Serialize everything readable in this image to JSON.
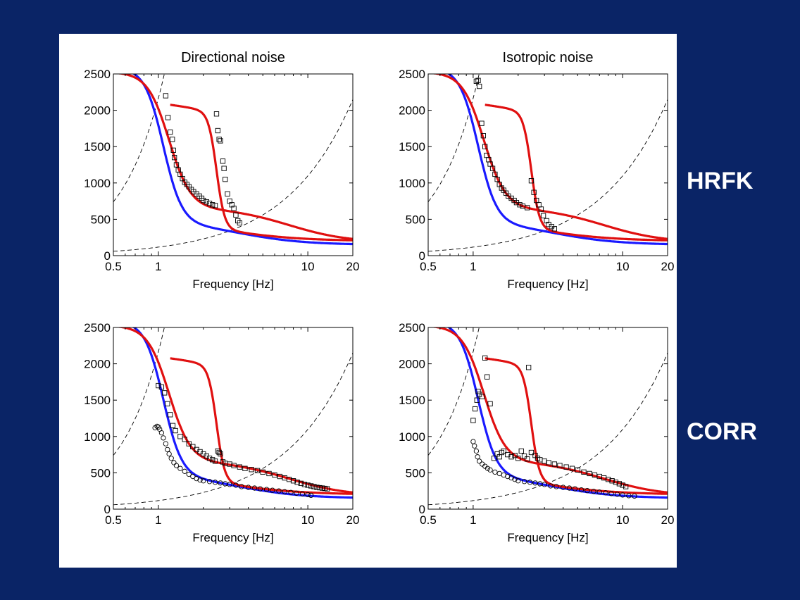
{
  "row_labels": {
    "top": "HRFK",
    "bottom": "CORR"
  },
  "colors": {
    "background": "#0a2466",
    "red_curve": "#e01010",
    "blue_curve": "#1a1aff",
    "markers": "#000000",
    "dashed": "#000000"
  },
  "axes_common": {
    "xlabel": "Frequency [Hz]",
    "xscale": "log",
    "xlim": [
      0.5,
      20
    ],
    "ylim": [
      0,
      2500
    ],
    "xticks": [
      0.5,
      1,
      10,
      20
    ],
    "xtick_labels": [
      "0.5",
      "1",
      "10",
      "20"
    ],
    "yticks": [
      0,
      500,
      1000,
      1500,
      2000,
      2500
    ],
    "ytick_labels": [
      "0",
      "500",
      "1000",
      "1500",
      "2000",
      "2500"
    ]
  },
  "chart_data": [
    {
      "type": "scatter",
      "title": "Directional noise",
      "xlabel": "Frequency [Hz]",
      "xlim": [
        0.5,
        20
      ],
      "ylim": [
        0,
        2500
      ],
      "series": [
        {
          "marker": "square",
          "points": [
            [
              1.12,
              2200
            ],
            [
              1.16,
              1900
            ],
            [
              1.2,
              1700
            ],
            [
              1.24,
              1600
            ],
            [
              1.26,
              1450
            ],
            [
              1.28,
              1350
            ],
            [
              1.32,
              1250
            ],
            [
              1.36,
              1180
            ],
            [
              1.4,
              1120
            ],
            [
              1.45,
              1060
            ],
            [
              1.5,
              1010
            ],
            [
              1.55,
              980
            ],
            [
              1.6,
              950
            ],
            [
              1.66,
              910
            ],
            [
              1.72,
              880
            ],
            [
              1.8,
              850
            ],
            [
              1.88,
              820
            ],
            [
              1.95,
              790
            ],
            [
              2.0,
              760
            ],
            [
              2.1,
              740
            ],
            [
              2.2,
              720
            ],
            [
              2.3,
              700
            ],
            [
              2.4,
              690
            ],
            [
              2.45,
              1950
            ],
            [
              2.5,
              1720
            ],
            [
              2.55,
              1600
            ],
            [
              2.6,
              1580
            ],
            [
              2.7,
              1300
            ],
            [
              2.75,
              1200
            ],
            [
              2.8,
              1050
            ],
            [
              2.9,
              850
            ],
            [
              3.0,
              750
            ],
            [
              3.1,
              700
            ],
            [
              3.2,
              650
            ],
            [
              3.3,
              560
            ],
            [
              3.4,
              480
            ],
            [
              3.5,
              450
            ]
          ]
        }
      ]
    },
    {
      "type": "scatter",
      "title": "Isotropic noise",
      "xlabel": "Frequency [Hz]",
      "xlim": [
        0.5,
        20
      ],
      "ylim": [
        0,
        2500
      ],
      "series": [
        {
          "marker": "square",
          "points": [
            [
              1.05,
              2400
            ],
            [
              1.08,
              2410
            ],
            [
              1.1,
              2330
            ],
            [
              1.14,
              1820
            ],
            [
              1.17,
              1650
            ],
            [
              1.2,
              1500
            ],
            [
              1.23,
              1380
            ],
            [
              1.27,
              1320
            ],
            [
              1.3,
              1260
            ],
            [
              1.35,
              1200
            ],
            [
              1.4,
              1120
            ],
            [
              1.45,
              1050
            ],
            [
              1.5,
              980
            ],
            [
              1.55,
              930
            ],
            [
              1.6,
              900
            ],
            [
              1.66,
              860
            ],
            [
              1.72,
              820
            ],
            [
              1.8,
              790
            ],
            [
              1.88,
              760
            ],
            [
              1.95,
              730
            ],
            [
              2.05,
              700
            ],
            [
              2.15,
              680
            ],
            [
              2.3,
              660
            ],
            [
              2.45,
              1030
            ],
            [
              2.55,
              870
            ],
            [
              2.65,
              760
            ],
            [
              2.75,
              700
            ],
            [
              2.85,
              640
            ],
            [
              2.95,
              550
            ],
            [
              3.1,
              480
            ],
            [
              3.2,
              430
            ],
            [
              3.35,
              400
            ],
            [
              3.5,
              370
            ]
          ]
        }
      ]
    },
    {
      "type": "scatter",
      "xlabel": "Frequency [Hz]",
      "xlim": [
        0.5,
        20
      ],
      "ylim": [
        0,
        2500
      ],
      "series": [
        {
          "marker": "square",
          "points": [
            [
              1.0,
              1700
            ],
            [
              1.05,
              1680
            ],
            [
              1.1,
              1600
            ],
            [
              1.15,
              1450
            ],
            [
              1.2,
              1300
            ],
            [
              1.25,
              1150
            ],
            [
              1.3,
              1080
            ],
            [
              1.4,
              1000
            ],
            [
              1.5,
              960
            ],
            [
              1.6,
              900
            ],
            [
              1.7,
              860
            ],
            [
              1.8,
              820
            ],
            [
              1.9,
              790
            ],
            [
              2.0,
              760
            ],
            [
              2.1,
              730
            ],
            [
              2.2,
              700
            ],
            [
              2.3,
              680
            ],
            [
              2.4,
              660
            ],
            [
              2.5,
              800
            ],
            [
              2.55,
              780
            ],
            [
              2.6,
              760
            ],
            [
              2.7,
              650
            ],
            [
              2.8,
              630
            ],
            [
              3.0,
              620
            ],
            [
              3.2,
              600
            ],
            [
              3.5,
              580
            ],
            [
              3.8,
              560
            ],
            [
              4.2,
              545
            ],
            [
              4.6,
              530
            ],
            [
              5.0,
              510
            ],
            [
              5.5,
              490
            ],
            [
              6.0,
              470
            ],
            [
              6.5,
              450
            ],
            [
              7.0,
              430
            ],
            [
              7.5,
              410
            ],
            [
              8.0,
              390
            ],
            [
              8.5,
              370
            ],
            [
              9.0,
              355
            ],
            [
              9.5,
              340
            ],
            [
              10.0,
              330
            ],
            [
              10.5,
              320
            ],
            [
              11.0,
              310
            ],
            [
              11.5,
              300
            ],
            [
              12.0,
              295
            ],
            [
              12.5,
              290
            ],
            [
              13.0,
              285
            ],
            [
              13.5,
              280
            ]
          ]
        },
        {
          "marker": "circle",
          "points": [
            [
              0.95,
              1120
            ],
            [
              0.98,
              1140
            ],
            [
              1.0,
              1130
            ],
            [
              1.02,
              1100
            ],
            [
              1.05,
              1050
            ],
            [
              1.08,
              980
            ],
            [
              1.12,
              900
            ],
            [
              1.15,
              820
            ],
            [
              1.18,
              760
            ],
            [
              1.22,
              700
            ],
            [
              1.27,
              640
            ],
            [
              1.32,
              600
            ],
            [
              1.4,
              560
            ],
            [
              1.5,
              520
            ],
            [
              1.6,
              480
            ],
            [
              1.7,
              450
            ],
            [
              1.8,
              420
            ],
            [
              1.9,
              400
            ],
            [
              2.0,
              390
            ],
            [
              2.2,
              380
            ],
            [
              2.4,
              370
            ],
            [
              2.6,
              360
            ],
            [
              2.8,
              350
            ],
            [
              3.0,
              340
            ],
            [
              3.3,
              330
            ],
            [
              3.6,
              310
            ],
            [
              4.0,
              300
            ],
            [
              4.4,
              290
            ],
            [
              4.8,
              280
            ],
            [
              5.3,
              270
            ],
            [
              5.8,
              260
            ],
            [
              6.4,
              250
            ],
            [
              7.0,
              240
            ],
            [
              7.7,
              230
            ],
            [
              8.4,
              220
            ],
            [
              9.2,
              210
            ],
            [
              10.0,
              200
            ],
            [
              10.5,
              190
            ]
          ]
        }
      ]
    },
    {
      "type": "scatter",
      "xlabel": "Frequency [Hz]",
      "xlim": [
        0.5,
        20
      ],
      "ylim": [
        0,
        2500
      ],
      "series": [
        {
          "marker": "square",
          "points": [
            [
              1.0,
              1220
            ],
            [
              1.03,
              1380
            ],
            [
              1.06,
              1500
            ],
            [
              1.08,
              1620
            ],
            [
              1.1,
              1580
            ],
            [
              1.15,
              1550
            ],
            [
              1.2,
              2080
            ],
            [
              1.24,
              1820
            ],
            [
              1.3,
              1450
            ],
            [
              1.38,
              700
            ],
            [
              1.45,
              760
            ],
            [
              1.5,
              720
            ],
            [
              1.55,
              780
            ],
            [
              1.6,
              800
            ],
            [
              1.7,
              750
            ],
            [
              1.8,
              720
            ],
            [
              1.9,
              740
            ],
            [
              2.0,
              700
            ],
            [
              2.1,
              800
            ],
            [
              2.2,
              730
            ],
            [
              2.3,
              690
            ],
            [
              2.35,
              1950
            ],
            [
              2.45,
              780
            ],
            [
              2.6,
              740
            ],
            [
              2.7,
              700
            ],
            [
              2.8,
              680
            ],
            [
              3.0,
              660
            ],
            [
              3.2,
              640
            ],
            [
              3.5,
              620
            ],
            [
              3.8,
              600
            ],
            [
              4.2,
              580
            ],
            [
              4.6,
              560
            ],
            [
              5.0,
              540
            ],
            [
              5.5,
              510
            ],
            [
              6.0,
              490
            ],
            [
              6.5,
              470
            ],
            [
              7.0,
              450
            ],
            [
              7.5,
              430
            ],
            [
              8.0,
              410
            ],
            [
              8.5,
              390
            ],
            [
              9.0,
              370
            ],
            [
              9.5,
              350
            ],
            [
              10.0,
              330
            ],
            [
              10.5,
              310
            ]
          ]
        },
        {
          "marker": "circle",
          "points": [
            [
              1.0,
              930
            ],
            [
              1.02,
              870
            ],
            [
              1.05,
              800
            ],
            [
              1.07,
              720
            ],
            [
              1.1,
              660
            ],
            [
              1.15,
              620
            ],
            [
              1.2,
              590
            ],
            [
              1.25,
              560
            ],
            [
              1.3,
              540
            ],
            [
              1.4,
              510
            ],
            [
              1.5,
              490
            ],
            [
              1.6,
              470
            ],
            [
              1.7,
              450
            ],
            [
              1.8,
              430
            ],
            [
              1.9,
              410
            ],
            [
              2.0,
              390
            ],
            [
              2.2,
              380
            ],
            [
              2.4,
              370
            ],
            [
              2.6,
              360
            ],
            [
              2.8,
              350
            ],
            [
              3.0,
              340
            ],
            [
              3.3,
              320
            ],
            [
              3.6,
              310
            ],
            [
              4.0,
              300
            ],
            [
              4.4,
              290
            ],
            [
              4.8,
              280
            ],
            [
              5.3,
              265
            ],
            [
              5.8,
              255
            ],
            [
              6.4,
              245
            ],
            [
              7.0,
              235
            ],
            [
              7.7,
              225
            ],
            [
              8.4,
              215
            ],
            [
              9.2,
              205
            ],
            [
              10.0,
              195
            ],
            [
              11.0,
              185
            ],
            [
              12.0,
              180
            ]
          ]
        }
      ]
    }
  ]
}
